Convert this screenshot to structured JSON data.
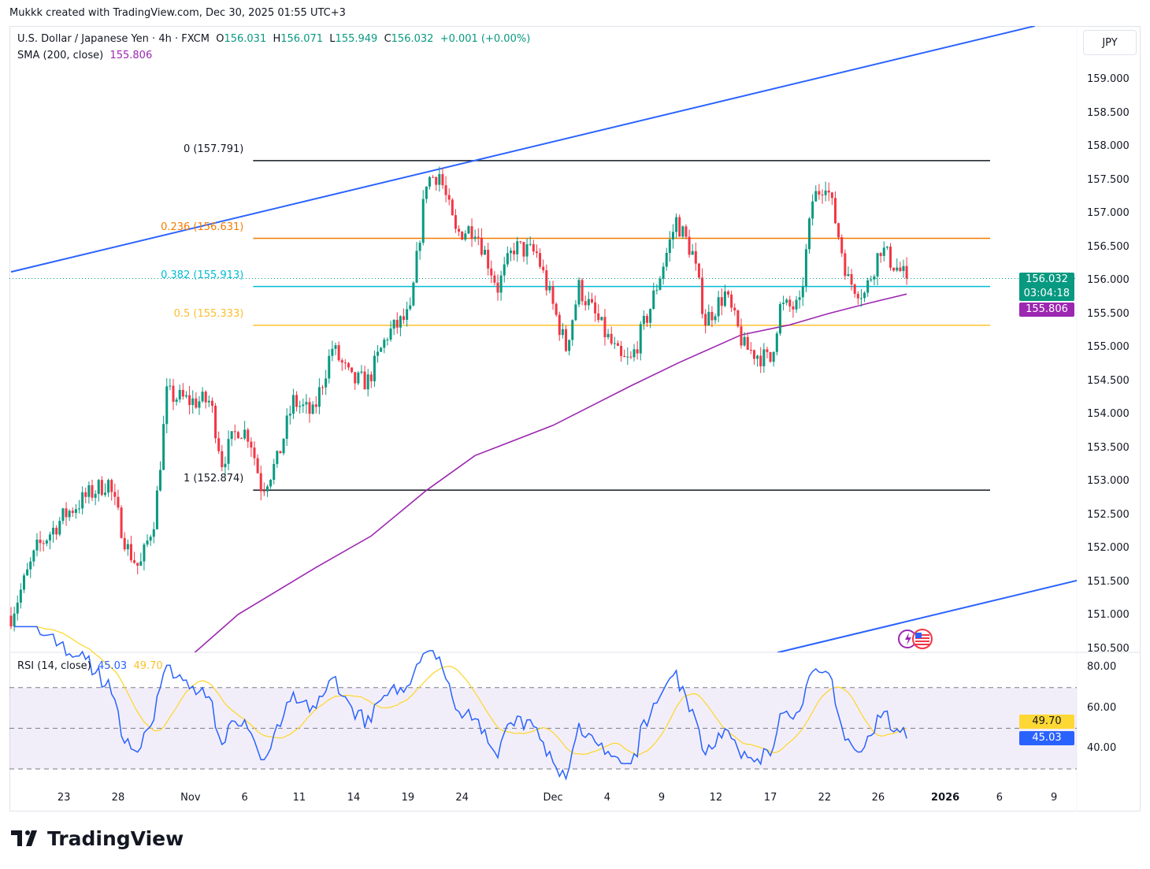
{
  "credit": "Mukkk created with TradingView.com, Dec 30, 2025 01:55 UTC+3",
  "legend": {
    "symbol": "U.S. Dollar / Japanese Yen · 4h · FXCM",
    "o_label": "O",
    "o": "156.031",
    "h_label": "H",
    "h": "156.071",
    "l_label": "L",
    "l": "155.949",
    "c_label": "C",
    "c": "156.032",
    "change": "+0.001 (+0.00%)",
    "sma_label": "SMA (200, close)",
    "sma_value": "155.806",
    "rsi_label": "RSI (14, close)",
    "rsi_value": "45.03",
    "rsi_ma_value": "49.70"
  },
  "currency_button": "JPY",
  "price_tags": {
    "last": "156.032",
    "countdown": "03:04:18",
    "sma": "155.806",
    "rsi": "45.03",
    "rsi_ma": "49.70"
  },
  "brand": "TradingView",
  "colors": {
    "up": "#089981",
    "down": "#f23645",
    "sma": "#9c27b0",
    "trend": "#2962ff",
    "rsi": "#2962ff",
    "rsi_ma": "#fdd835"
  },
  "chart_data": {
    "type": "candlestick",
    "title": "U.S. Dollar / Japanese Yen · 4h · FXCM",
    "price_axis": {
      "ylim": [
        150.5,
        159.0
      ],
      "ticks": [
        "159.000",
        "158.500",
        "158.000",
        "157.500",
        "157.000",
        "156.500",
        "156.000",
        "155.500",
        "155.000",
        "154.500",
        "154.000",
        "153.500",
        "153.000",
        "152.500",
        "152.000",
        "151.500",
        "151.000",
        "150.500"
      ]
    },
    "time_axis": [
      {
        "label": "23",
        "bar": 16.3
      },
      {
        "label": "28",
        "bar": 33
      },
      {
        "label": "Nov",
        "bar": 55.3
      },
      {
        "label": "6",
        "bar": 72
      },
      {
        "label": "11",
        "bar": 88.8
      },
      {
        "label": "14",
        "bar": 105.6
      },
      {
        "label": "19",
        "bar": 122.3
      },
      {
        "label": "24",
        "bar": 139
      },
      {
        "label": "Dec",
        "bar": 167
      },
      {
        "label": "4",
        "bar": 183.7
      },
      {
        "label": "9",
        "bar": 200.5
      },
      {
        "label": "12",
        "bar": 217.2
      },
      {
        "label": "17",
        "bar": 234
      },
      {
        "label": "22",
        "bar": 250.7
      },
      {
        "label": "26",
        "bar": 267.2
      },
      {
        "label": "2026",
        "bar": 287.9
      },
      {
        "label": "6",
        "bar": 304.6
      },
      {
        "label": "9",
        "bar": 321.4
      }
    ],
    "bars_visible": 338,
    "price_path": [
      [
        0,
        151.0
      ],
      [
        8,
        152.0
      ],
      [
        16.5,
        152.5
      ],
      [
        23.8,
        152.8
      ],
      [
        29.9,
        153.0
      ],
      [
        35.9,
        152.0
      ],
      [
        39.6,
        151.7
      ],
      [
        44.4,
        152.5
      ],
      [
        48,
        154.3
      ],
      [
        55.3,
        154.2
      ],
      [
        61.4,
        154.2
      ],
      [
        65,
        153.3
      ],
      [
        69.9,
        153.8
      ],
      [
        73.5,
        153.7
      ],
      [
        77.2,
        152.9
      ],
      [
        82,
        153.3
      ],
      [
        86.9,
        154.2
      ],
      [
        93,
        154.0
      ],
      [
        99,
        155.0
      ],
      [
        105,
        154.5
      ],
      [
        110,
        154.5
      ],
      [
        116,
        155.2
      ],
      [
        123,
        155.5
      ],
      [
        128,
        157.5
      ],
      [
        132,
        157.6
      ],
      [
        137,
        156.7
      ],
      [
        143,
        156.8
      ],
      [
        150,
        155.9
      ],
      [
        155,
        156.5
      ],
      [
        162,
        156.4
      ],
      [
        171,
        155.0
      ],
      [
        175,
        155.9
      ],
      [
        182,
        155.3
      ],
      [
        188,
        154.8
      ],
      [
        191,
        154.8
      ],
      [
        197,
        155.6
      ],
      [
        205,
        156.9
      ],
      [
        210,
        156.4
      ],
      [
        214,
        155.4
      ],
      [
        220,
        155.8
      ],
      [
        226,
        155.0
      ],
      [
        234,
        154.8
      ],
      [
        237,
        155.6
      ],
      [
        243,
        155.6
      ],
      [
        247,
        157.2
      ],
      [
        251,
        157.5
      ],
      [
        254,
        156.9
      ],
      [
        258,
        156.0
      ],
      [
        263,
        155.8
      ],
      [
        268,
        156.5
      ],
      [
        271,
        156.3
      ],
      [
        276,
        156.03
      ]
    ],
    "sma200": [
      [
        56.6,
        150.45
      ],
      [
        70,
        151.02
      ],
      [
        94,
        151.72
      ],
      [
        111,
        152.19
      ],
      [
        128,
        152.87
      ],
      [
        143,
        153.39
      ],
      [
        167,
        153.84
      ],
      [
        191,
        154.43
      ],
      [
        206,
        154.78
      ],
      [
        225,
        155.19
      ],
      [
        240,
        155.34
      ],
      [
        252,
        155.51
      ],
      [
        264,
        155.66
      ],
      [
        276,
        155.8
      ]
    ],
    "trendlines": [
      {
        "name": "upper-channel",
        "from": [
          0,
          156.13
        ],
        "to": [
          315.5,
          159.8
        ]
      },
      {
        "name": "lower-channel",
        "from": [
          236.2,
          150.45
        ],
        "to": [
          328.9,
          151.53
        ]
      }
    ],
    "fibonacci": {
      "from_bar": 74.6,
      "to_bar": 301.7,
      "levels": [
        {
          "label": "0 (157.791)",
          "price": 157.791,
          "color": "#131722"
        },
        {
          "label": "0.236 (156.631)",
          "price": 156.631,
          "color": "#f57c00"
        },
        {
          "label": "0.382 (155.913)",
          "price": 155.913,
          "color": "#00bcd4"
        },
        {
          "label": "0.5 (155.333)",
          "price": 155.333,
          "color": "#fbc02d"
        },
        {
          "label": "1 (152.874)",
          "price": 152.874,
          "color": "#131722"
        }
      ]
    },
    "rsi": {
      "period": 14,
      "ylim": [
        25,
        85
      ],
      "ticks": [
        "80.00",
        "60.00",
        "40.00"
      ],
      "bands": [
        70,
        50,
        30
      ],
      "last": 45.03,
      "ma_last": 49.7
    }
  }
}
